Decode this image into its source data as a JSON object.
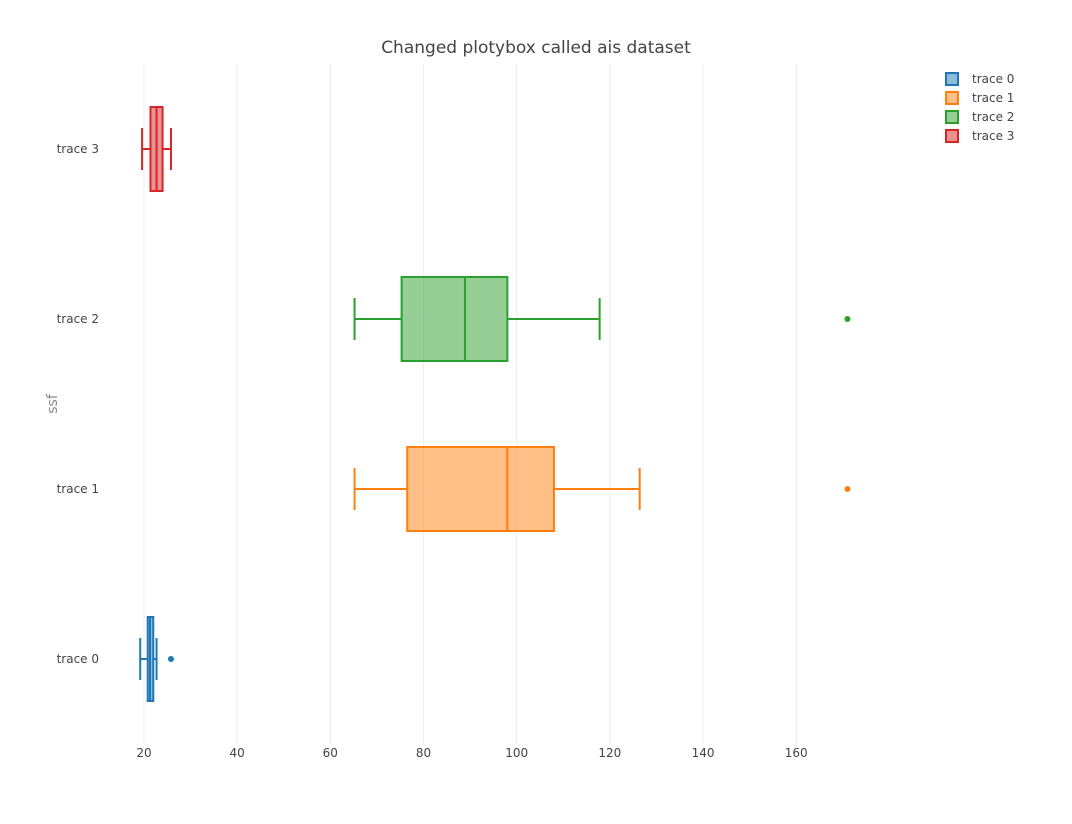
{
  "chart_data": {
    "type": "box",
    "orientation": "horizontal",
    "title": "Changed plotybox called ais dataset",
    "xlabel": "",
    "ylabel": "ssf",
    "xlim": [
      14,
      190
    ],
    "xticks": [
      20,
      40,
      60,
      80,
      100,
      120,
      140,
      160
    ],
    "grid": true,
    "legend": "top-right",
    "series": [
      {
        "name": "trace 0",
        "color": "#1f77b4",
        "fill": "rgba(31,119,180,0.5)",
        "min": 19.2,
        "q1": 20.8,
        "median": 21.3,
        "q3": 22.0,
        "max": 22.7,
        "outliers": [
          25.8
        ]
      },
      {
        "name": "trace 1",
        "color": "#ff7f0e",
        "fill": "rgba(255,127,14,0.5)",
        "min": 65.2,
        "q1": 76.5,
        "median": 98.0,
        "q3": 108.0,
        "max": 126.4,
        "outliers": [
          171.0
        ]
      },
      {
        "name": "trace 2",
        "color": "#2ca02c",
        "fill": "rgba(44,160,44,0.5)",
        "min": 65.2,
        "q1": 75.3,
        "median": 88.9,
        "q3": 98.0,
        "max": 117.8,
        "outliers": [
          171.0
        ]
      },
      {
        "name": "trace 3",
        "color": "#d62728",
        "fill": "rgba(214,39,40,0.5)",
        "min": 19.6,
        "q1": 21.4,
        "median": 22.7,
        "q3": 24.0,
        "max": 25.8,
        "outliers": []
      }
    ]
  }
}
